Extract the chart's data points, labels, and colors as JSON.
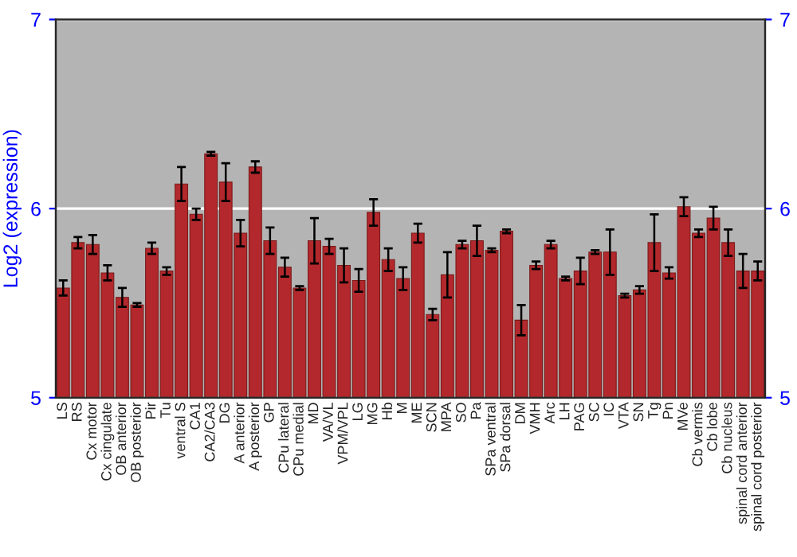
{
  "chart_data": {
    "type": "bar",
    "ylabel": "Log2 (expression)",
    "categories": [
      "LS",
      "RS",
      "Cx motor",
      "Cx cingulate",
      "OB anterior",
      "OB posterior",
      "Pir",
      "Tu",
      "ventral S",
      "CA1",
      "CA2/CA3",
      "DG",
      "A anterior",
      "A posterior",
      "GP",
      "CPu lateral",
      "CPu medial",
      "MD",
      "VA/VL",
      "VPM/VPL",
      "LG",
      "MG",
      "Hb",
      "M",
      "ME",
      "SCN",
      "MPA",
      "SO",
      "Pa",
      "SPa ventral",
      "SPa dorsal",
      "DM",
      "VMH",
      "Arc",
      "LH",
      "PAG",
      "SC",
      "IC",
      "VTA",
      "SN",
      "Tg",
      "Pn",
      "MVe",
      "Cb vermis",
      "Cb lobe",
      "Cb nucleus",
      "spinal cord anterior",
      "spinal cord posterior"
    ],
    "values": [
      5.58,
      5.82,
      5.81,
      5.66,
      5.53,
      5.49,
      5.79,
      5.67,
      6.13,
      5.97,
      6.29,
      6.14,
      5.87,
      6.22,
      5.83,
      5.69,
      5.58,
      5.83,
      5.8,
      5.7,
      5.62,
      5.98,
      5.73,
      5.63,
      5.87,
      5.44,
      5.65,
      5.81,
      5.83,
      5.78,
      5.88,
      5.41,
      5.7,
      5.81,
      5.63,
      5.67,
      5.77,
      5.77,
      5.54,
      5.57,
      5.82,
      5.66,
      6.01,
      5.87,
      5.95,
      5.82,
      5.67,
      5.67
    ],
    "errors": [
      0.04,
      0.03,
      0.05,
      0.04,
      0.05,
      0.01,
      0.03,
      0.02,
      0.09,
      0.03,
      0.01,
      0.1,
      0.07,
      0.03,
      0.07,
      0.05,
      0.01,
      0.12,
      0.04,
      0.09,
      0.06,
      0.07,
      0.06,
      0.06,
      0.05,
      0.03,
      0.12,
      0.02,
      0.08,
      0.01,
      0.01,
      0.08,
      0.02,
      0.02,
      0.01,
      0.07,
      0.01,
      0.12,
      0.01,
      0.02,
      0.15,
      0.03,
      0.05,
      0.02,
      0.06,
      0.07,
      0.09,
      0.05
    ],
    "color": "#b3282c",
    "ylim": [
      5,
      7
    ],
    "yticks": [
      5,
      6,
      7
    ],
    "y2lim": [
      5,
      7
    ],
    "y2ticks": [
      5,
      6,
      7
    ],
    "grid": "y"
  }
}
